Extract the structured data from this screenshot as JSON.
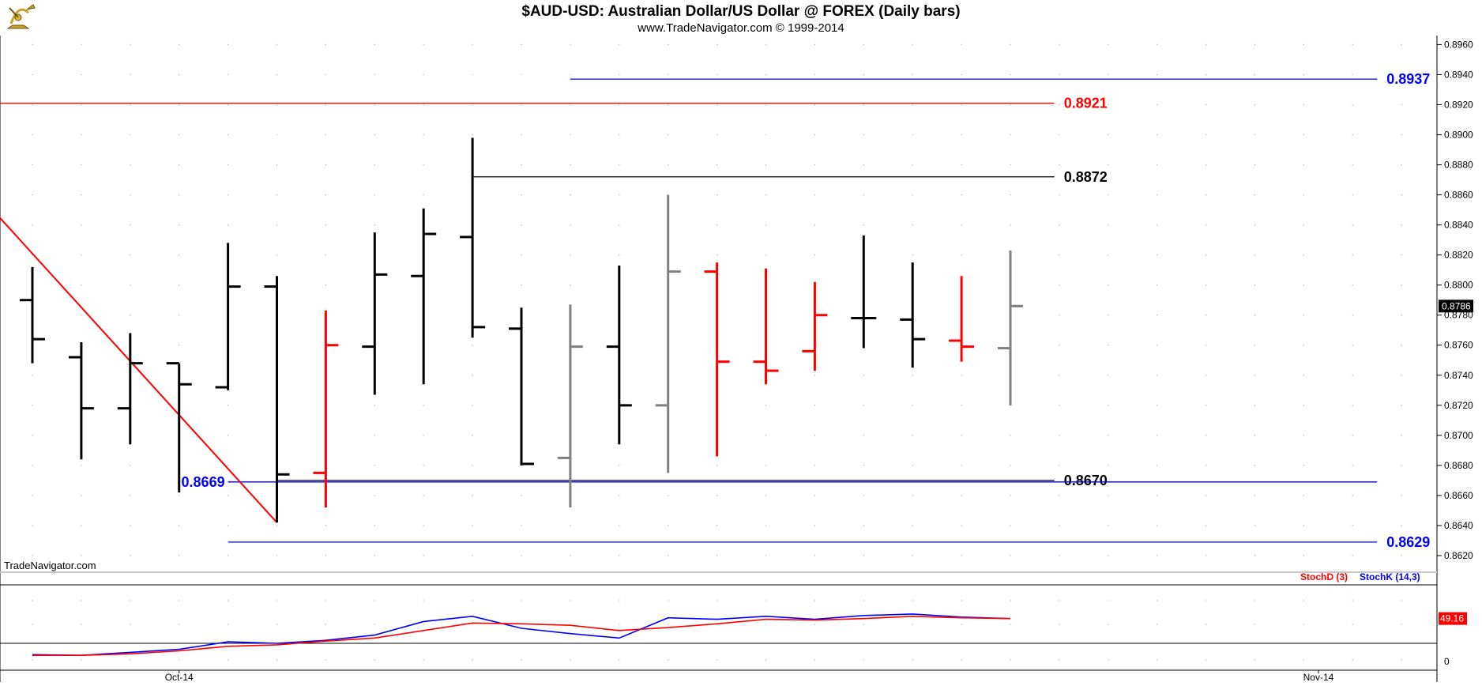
{
  "header": {
    "title": "$AUD-USD:  Australian Dollar/US Dollar @ FOREX  (Daily bars)",
    "subtitle": "www.TradeNavigator.com © 1999-2014",
    "watermark": "TradeNavigator.com"
  },
  "colors": {
    "up_bar": "#000000",
    "down_bar": "#ff0000",
    "neutral_bar": "#808080",
    "grid_dot": "#b0b0b0",
    "blue_level": "#0000ff",
    "red_level": "#ff0000",
    "black_level": "#000000",
    "trendline": "#ff0000",
    "last_price_bg": "#000000",
    "stoch_value_bg": "#ff0000"
  },
  "chart_data": [
    {
      "type": "ohlc",
      "name": "price",
      "ylim": [
        0.861,
        0.8966
      ],
      "y_ticks": [
        "0.8620",
        "0.8640",
        "0.8660",
        "0.8680",
        "0.8700",
        "0.8720",
        "0.8740",
        "0.8760",
        "0.8780",
        "0.8800",
        "0.8820",
        "0.8840",
        "0.8860",
        "0.8880",
        "0.8900",
        "0.8920",
        "0.8940",
        "0.8960"
      ],
      "x_labels": [
        {
          "label": "Oct-14",
          "bar": 3
        },
        {
          "label": "Nov-14",
          "bar": 26.3
        }
      ],
      "last_price_label": "0.8786",
      "bars": [
        {
          "o": 0.879,
          "h": 0.8812,
          "l": 0.8748,
          "c": 0.8764,
          "color": "black"
        },
        {
          "o": 0.8752,
          "h": 0.8762,
          "l": 0.8684,
          "c": 0.8718,
          "color": "black"
        },
        {
          "o": 0.8718,
          "h": 0.8768,
          "l": 0.8694,
          "c": 0.8748,
          "color": "black"
        },
        {
          "o": 0.8748,
          "h": 0.8748,
          "l": 0.8662,
          "c": 0.8734,
          "color": "black"
        },
        {
          "o": 0.8732,
          "h": 0.8828,
          "l": 0.873,
          "c": 0.8799,
          "color": "black"
        },
        {
          "o": 0.8799,
          "h": 0.8806,
          "l": 0.8642,
          "c": 0.8674,
          "color": "black"
        },
        {
          "o": 0.8675,
          "h": 0.8783,
          "l": 0.8652,
          "c": 0.876,
          "color": "red"
        },
        {
          "o": 0.8759,
          "h": 0.8835,
          "l": 0.8727,
          "c": 0.8807,
          "color": "black"
        },
        {
          "o": 0.8806,
          "h": 0.8851,
          "l": 0.8734,
          "c": 0.8834,
          "color": "black"
        },
        {
          "o": 0.8832,
          "h": 0.8898,
          "l": 0.8765,
          "c": 0.8772,
          "color": "black"
        },
        {
          "o": 0.8771,
          "h": 0.8785,
          "l": 0.868,
          "c": 0.8681,
          "color": "black"
        },
        {
          "o": 0.8685,
          "h": 0.8787,
          "l": 0.8652,
          "c": 0.8759,
          "color": "gray"
        },
        {
          "o": 0.8759,
          "h": 0.8813,
          "l": 0.8694,
          "c": 0.872,
          "color": "black"
        },
        {
          "o": 0.872,
          "h": 0.886,
          "l": 0.8675,
          "c": 0.8809,
          "color": "gray"
        },
        {
          "o": 0.8809,
          "h": 0.8815,
          "l": 0.8686,
          "c": 0.8749,
          "color": "red"
        },
        {
          "o": 0.8749,
          "h": 0.8811,
          "l": 0.8734,
          "c": 0.8743,
          "color": "red"
        },
        {
          "o": 0.8756,
          "h": 0.8802,
          "l": 0.8743,
          "c": 0.878,
          "color": "red"
        },
        {
          "o": 0.8778,
          "h": 0.8833,
          "l": 0.8758,
          "c": 0.8778,
          "color": "black"
        },
        {
          "o": 0.8777,
          "h": 0.8815,
          "l": 0.8745,
          "c": 0.8764,
          "color": "black"
        },
        {
          "o": 0.8763,
          "h": 0.8806,
          "l": 0.8749,
          "c": 0.8759,
          "color": "red"
        },
        {
          "o": 0.8758,
          "h": 0.8823,
          "l": 0.872,
          "c": 0.8786,
          "color": "gray"
        }
      ],
      "levels": [
        {
          "value": 0.8937,
          "label": "0.8937",
          "color": "blue",
          "from_bar": 11,
          "to_bar": 27.5,
          "label_side": "right"
        },
        {
          "value": 0.8921,
          "label": "0.8921",
          "color": "red",
          "from_bar": -0.7,
          "to_bar": 20.9,
          "label_side": "right"
        },
        {
          "value": 0.8872,
          "label": "0.8872",
          "color": "black",
          "from_bar": 9,
          "to_bar": 20.9,
          "label_side": "right"
        },
        {
          "value": 0.867,
          "label": "0.8670",
          "color": "black",
          "from_bar": 5,
          "to_bar": 20.9,
          "label_side": "right"
        },
        {
          "value": 0.8669,
          "label": "0.8669",
          "color": "blue",
          "from_bar": 4,
          "to_bar": 27.5,
          "label_side": "left"
        },
        {
          "value": 0.8629,
          "label": "0.8629",
          "color": "blue",
          "from_bar": 4,
          "to_bar": 27.5,
          "label_side": "right"
        }
      ],
      "trendline": {
        "from": {
          "bar": -0.7,
          "value": 0.8846
        },
        "to": {
          "bar": 5,
          "value": 0.8642
        }
      }
    },
    {
      "type": "line",
      "name": "stochastic",
      "ylim": [
        0,
        100
      ],
      "y_ticks": [
        "0"
      ],
      "value_label": "49.16",
      "legend": [
        {
          "name": "StochD (3)",
          "color": "red"
        },
        {
          "name": "StochK (14,3)",
          "color": "blue"
        }
      ],
      "series": [
        {
          "name": "StochK (14,3)",
          "color": "blue",
          "values": [
            5,
            4,
            8,
            12,
            22,
            20,
            24,
            31,
            49,
            56,
            40,
            33,
            27,
            54,
            52,
            56,
            52,
            57,
            59,
            55,
            53
          ]
        },
        {
          "name": "StochD (3)",
          "color": "red",
          "values": [
            4,
            4,
            6,
            10,
            16,
            18,
            23,
            27,
            37,
            47,
            46,
            44,
            37,
            41,
            46,
            52,
            51,
            53,
            56,
            54,
            53
          ]
        }
      ]
    }
  ]
}
